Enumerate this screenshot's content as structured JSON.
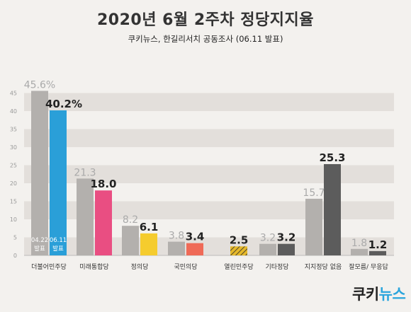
{
  "chart_data": {
    "type": "bar",
    "title": "2020년 6월 2주차 정당지지율",
    "subtitle": "쿠키뉴스, 한길리서치 공동조사 (06.11 발표)",
    "xlabel": "",
    "ylabel": "",
    "ylim": [
      0,
      50
    ],
    "yticks": [
      0,
      5,
      10,
      15,
      20,
      25,
      30,
      35,
      40,
      45
    ],
    "grid": true,
    "categories": [
      "더불어민주당",
      "미래통합당",
      "정의당",
      "국민의당",
      "열린민주당",
      "기타정당",
      "지지정당 없음",
      "잘모름/ 무응답"
    ],
    "series": [
      {
        "name": "04.22 발표",
        "color": "#b3b0ad",
        "values": [
          45.6,
          21.3,
          8.2,
          3.8,
          null,
          3.2,
          15.7,
          1.8
        ],
        "labels": [
          "45.6%",
          "21.3",
          "8.2",
          "3.8",
          "",
          "3.2",
          "15.7",
          "1.8"
        ]
      },
      {
        "name": "06.11 발표",
        "colors": [
          "#2a9fd8",
          "#e94e82",
          "#f5cc2e",
          "#ef6a57",
          "#e5b82a",
          "#5c5c5c",
          "#5c5c5c",
          "#5c5c5c"
        ],
        "values": [
          40.2,
          18.0,
          6.1,
          3.4,
          2.5,
          3.2,
          25.3,
          1.2
        ],
        "labels": [
          "40.2%",
          "18.0",
          "6.1",
          "3.4",
          "2.5",
          "3.2",
          "25.3",
          "1.2"
        ]
      }
    ],
    "bar_annotations": [
      {
        "category": 0,
        "series": 0,
        "lines": [
          "04.22",
          "발표"
        ]
      },
      {
        "category": 0,
        "series": 1,
        "lines": [
          "06.11",
          "발표"
        ]
      }
    ]
  },
  "brand": {
    "part1": "쿠키",
    "part2": "뉴스"
  }
}
